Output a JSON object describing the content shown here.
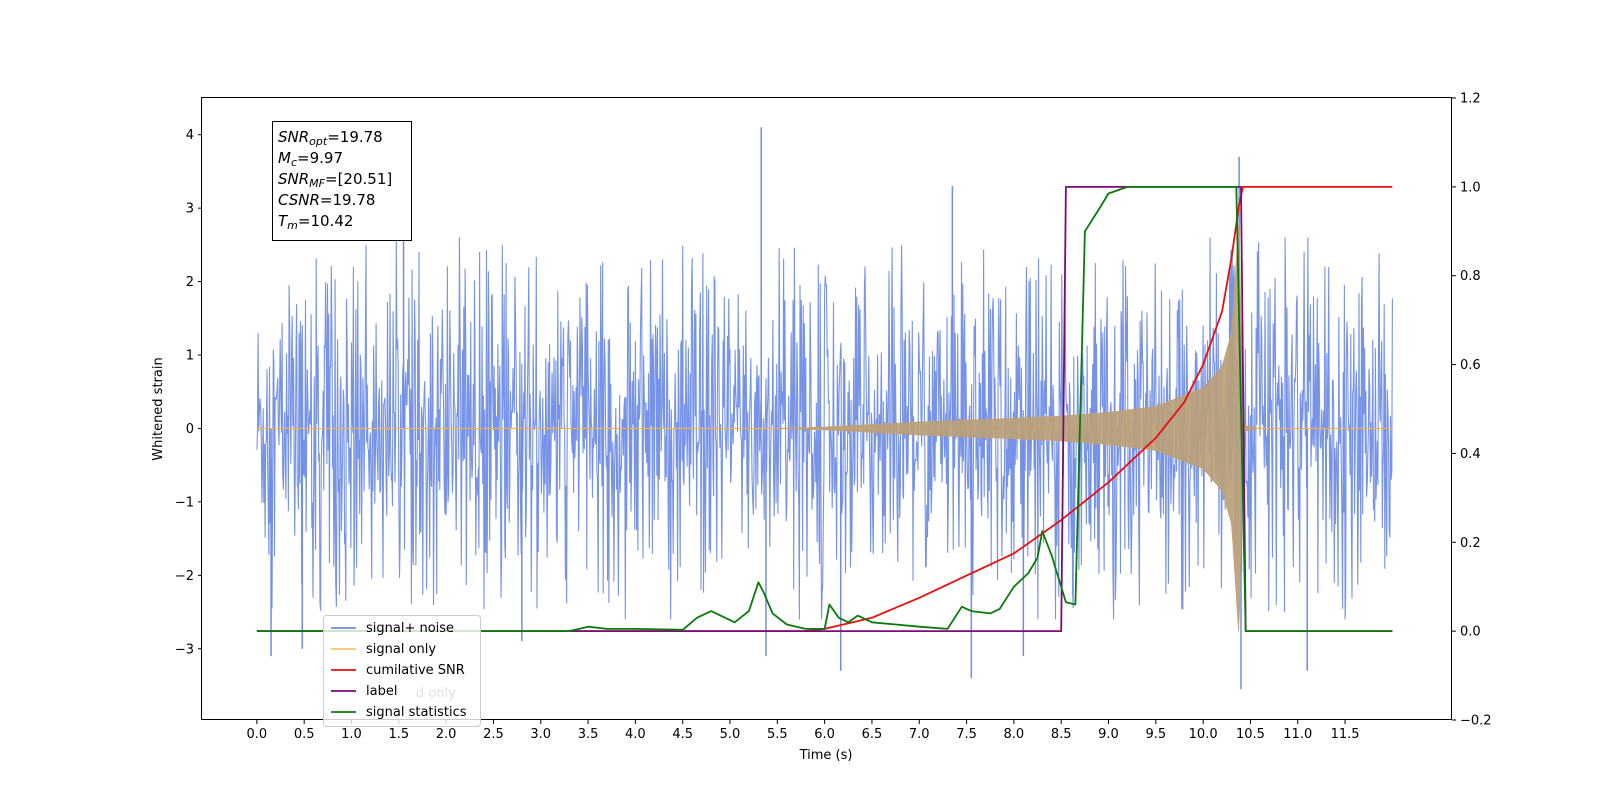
{
  "chart_data": {
    "type": "line",
    "xlabel": "Time (s)",
    "ylabel": "Whitened strain",
    "xlim": [
      -0.58,
      12.63
    ],
    "ylim": [
      -3.97,
      4.5
    ],
    "y2lim": [
      -0.2,
      1.2
    ],
    "x_ticks": [
      0.0,
      0.5,
      1.0,
      1.5,
      2.0,
      2.5,
      3.0,
      3.5,
      4.0,
      4.5,
      5.0,
      5.5,
      6.0,
      6.5,
      7.0,
      7.5,
      8.0,
      8.5,
      9.0,
      9.5,
      10.0,
      10.5,
      11.0,
      11.5
    ],
    "x_tick_labels": [
      "0.0",
      "0.5",
      "1.0",
      "1.5",
      "2.0",
      "2.5",
      "3.0",
      "3.5",
      "4.0",
      "4.5",
      "5.0",
      "5.5",
      "6.0",
      "6.5",
      "7.0",
      "7.5",
      "8.0",
      "8.5",
      "9.0",
      "9.5",
      "10.0",
      "10.5",
      "11.0",
      "11.5"
    ],
    "y_ticks": [
      -3,
      -2,
      -1,
      0,
      1,
      2,
      3,
      4
    ],
    "y_tick_labels": [
      "−3",
      "−2",
      "−1",
      "0",
      "1",
      "2",
      "3",
      "4"
    ],
    "y2_ticks": [
      -0.2,
      0.0,
      0.2,
      0.4,
      0.6,
      0.8,
      1.0,
      1.2
    ],
    "y2_tick_labels": [
      "−0.2",
      "0.0",
      "0.2",
      "0.4",
      "0.6",
      "0.8",
      "1.0",
      "1.2"
    ],
    "grid": false,
    "legend_position": "bottom-left",
    "series": [
      {
        "name": "signal+ noise",
        "color": "#6f8de6",
        "axis": "left",
        "style": "noise",
        "x_range": [
          0.0,
          12.0
        ],
        "envelope": 1.7,
        "spikes": [
          {
            "x": 0.15,
            "y": -3.1
          },
          {
            "x": 0.48,
            "y": -3.0
          },
          {
            "x": 1.55,
            "y": 2.7
          },
          {
            "x": 2.8,
            "y": -2.9
          },
          {
            "x": 5.33,
            "y": 4.1
          },
          {
            "x": 5.38,
            "y": -3.1
          },
          {
            "x": 6.17,
            "y": -3.3
          },
          {
            "x": 7.35,
            "y": 3.3
          },
          {
            "x": 7.55,
            "y": -3.4
          },
          {
            "x": 8.1,
            "y": -3.1
          },
          {
            "x": 10.38,
            "y": 3.7
          },
          {
            "x": 10.4,
            "y": -3.55
          },
          {
            "x": 11.1,
            "y": -3.3
          }
        ]
      },
      {
        "name": "signal only",
        "color": "#f5a623",
        "axis": "left",
        "style": "chirp",
        "x": [
          0.0,
          5.5,
          6.0,
          7.0,
          8.0,
          8.5,
          9.0,
          9.5,
          10.0,
          10.2,
          10.3,
          10.38,
          10.42,
          10.5,
          12.0
        ],
        "amplitude": [
          0.0,
          0.0,
          0.02,
          0.09,
          0.14,
          0.17,
          0.22,
          0.3,
          0.55,
          0.85,
          1.3,
          2.9,
          0.05,
          0.02,
          0.0
        ]
      },
      {
        "name": "cumilative SNR",
        "color": "#e8100f",
        "axis": "right",
        "style": "line",
        "x": [
          0.0,
          5.8,
          6.0,
          6.5,
          7.0,
          7.5,
          8.0,
          8.5,
          9.0,
          9.5,
          9.8,
          10.0,
          10.2,
          10.3,
          10.38,
          10.42,
          12.0
        ],
        "y": [
          0.0,
          0.0,
          0.005,
          0.03,
          0.075,
          0.125,
          0.175,
          0.25,
          0.335,
          0.435,
          0.515,
          0.6,
          0.72,
          0.84,
          0.96,
          1.0,
          1.0
        ]
      },
      {
        "name": "label",
        "color": "#7b0a7a",
        "axis": "right",
        "style": "line",
        "x": [
          0.0,
          8.5,
          8.55,
          10.4,
          10.45,
          12.0
        ],
        "y": [
          0.0,
          0.0,
          1.0,
          1.0,
          0.0,
          0.0
        ]
      },
      {
        "name": "signal statistics",
        "color": "#0a7a0a",
        "axis": "right",
        "style": "line",
        "x": [
          0.0,
          3.3,
          3.5,
          3.7,
          4.0,
          4.5,
          4.65,
          4.8,
          4.9,
          5.05,
          5.2,
          5.3,
          5.35,
          5.45,
          5.6,
          5.8,
          6.0,
          6.05,
          6.15,
          6.25,
          6.35,
          6.5,
          7.0,
          7.3,
          7.45,
          7.55,
          7.75,
          7.85,
          8.0,
          8.15,
          8.25,
          8.3,
          8.4,
          8.55,
          8.65,
          8.75,
          8.9,
          9.0,
          9.2,
          9.5,
          10.0,
          10.35,
          10.45,
          12.0
        ],
        "y": [
          0.0,
          0.0,
          0.01,
          0.005,
          0.005,
          0.003,
          0.03,
          0.045,
          0.035,
          0.02,
          0.045,
          0.11,
          0.09,
          0.04,
          0.015,
          0.005,
          0.005,
          0.06,
          0.03,
          0.02,
          0.035,
          0.02,
          0.01,
          0.005,
          0.055,
          0.045,
          0.04,
          0.05,
          0.1,
          0.13,
          0.165,
          0.225,
          0.17,
          0.065,
          0.06,
          0.9,
          0.95,
          0.985,
          1.0,
          1.0,
          1.0,
          1.0,
          0.0,
          0.0
        ]
      }
    ],
    "legend": [
      "signal+ noise",
      "signal only",
      "cumilative SNR",
      "label",
      "signal statistics"
    ],
    "legend_ghost_text": [
      "d only"
    ],
    "annotations": {
      "lines": [
        {
          "main": "SNR",
          "sub": "opt",
          "rest": "=19.78"
        },
        {
          "main": "M",
          "sub": "c",
          "rest": "=9.97"
        },
        {
          "main": "SNR",
          "sub": "MF",
          "rest": "=[20.51]"
        },
        {
          "main": "CSNR",
          "sub": "",
          "rest": "=19.78"
        },
        {
          "main": "T",
          "sub": "m",
          "rest": "=10.42"
        }
      ]
    }
  }
}
